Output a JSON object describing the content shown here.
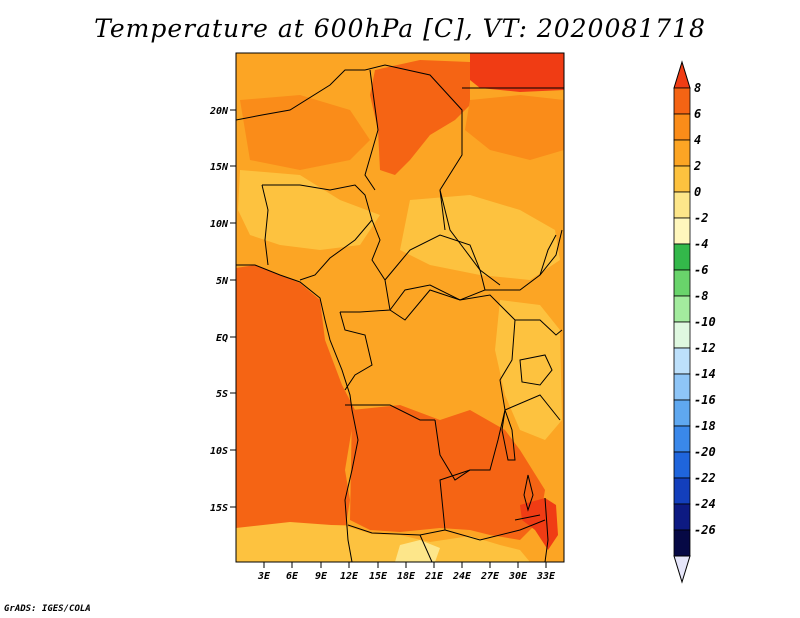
{
  "title": "Temperature at 600hPa [C], VT: 2020081718",
  "credit": "GrADS: IGES/COLA",
  "map": {
    "lat_ticks": [
      "20N",
      "15N",
      "10N",
      "5N",
      "EQ",
      "5S",
      "10S",
      "15S"
    ],
    "lon_ticks": [
      "3E",
      "6E",
      "9E",
      "12E",
      "15E",
      "18E",
      "21E",
      "24E",
      "27E",
      "30E",
      "33E"
    ]
  },
  "colorbar": {
    "labels": [
      "8",
      "6",
      "4",
      "2",
      "0",
      "-2",
      "-4",
      "-6",
      "-8",
      "-10",
      "-12",
      "-14",
      "-16",
      "-18",
      "-20",
      "-22",
      "-24",
      "-26"
    ],
    "colors": [
      "#f03c14",
      "#f56414",
      "#fa8c19",
      "#fca524",
      "#fdc23f",
      "#fde68a",
      "#fff7bd",
      "#33b84a",
      "#69d46b",
      "#a3ec9e",
      "#dff8e0",
      "#bde0fb",
      "#8ec5f7",
      "#5fa8f0",
      "#3a88ea",
      "#1f65dc",
      "#133fbc",
      "#0d1a82",
      "#060945",
      "#e6e6fa"
    ]
  },
  "colors": {
    "base": "#fca524",
    "warm": "#fa8c19",
    "hot": "#f56414",
    "hottest": "#f03c14",
    "cool": "#fdc23f",
    "coolest": "#fde68a"
  }
}
